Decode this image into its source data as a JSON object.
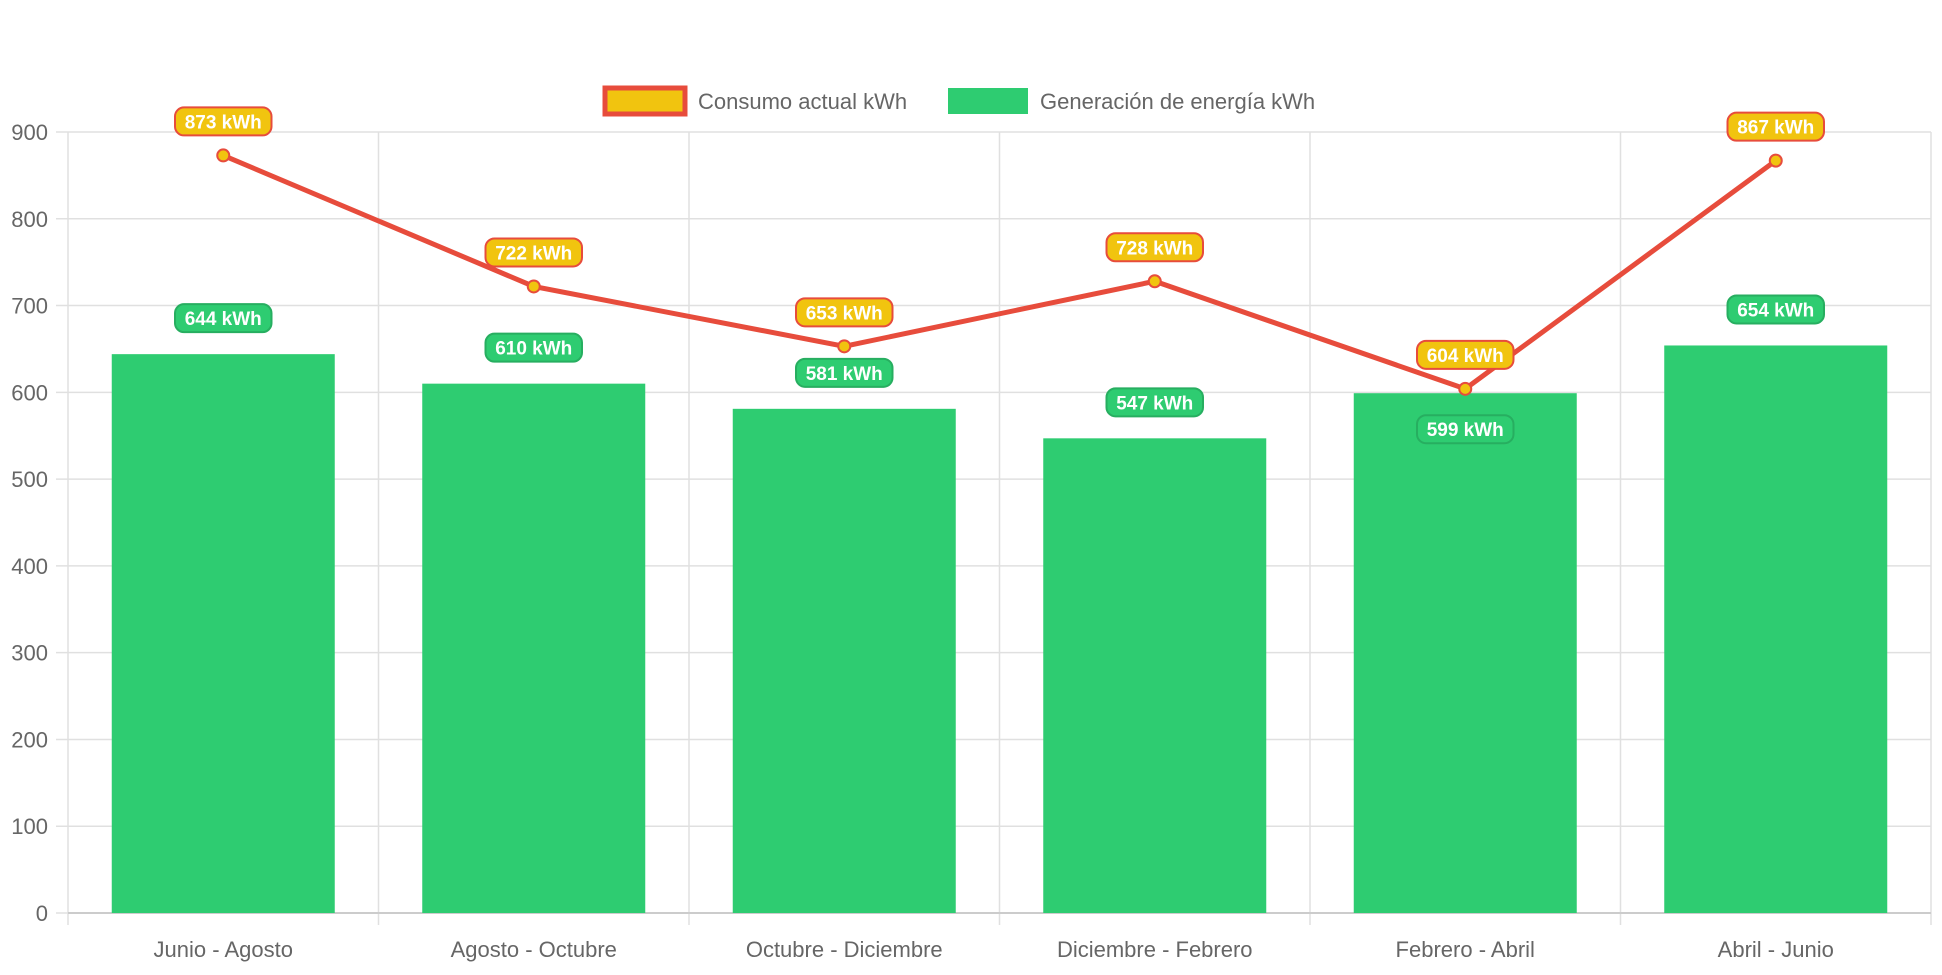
{
  "chart_data": {
    "type": "bar",
    "categories": [
      "Junio - Agosto",
      "Agosto - Octubre",
      "Octubre - Diciembre",
      "Diciembre - Febrero",
      "Febrero - Abril",
      "Abril - Junio"
    ],
    "series": [
      {
        "name": "Consumo actual kWh",
        "type": "line",
        "values": [
          873,
          722,
          653,
          728,
          604,
          867
        ],
        "labels": [
          "873 kWh",
          "722 kWh",
          "653 kWh",
          "728 kWh",
          "604 kWh",
          "867 kWh"
        ],
        "color": "#e74c3c",
        "fill": "#f1c40f"
      },
      {
        "name": "Generación de energía kWh",
        "type": "bar",
        "values": [
          644,
          610,
          581,
          547,
          599,
          654
        ],
        "labels": [
          "644 kWh",
          "610 kWh",
          "581 kWh",
          "547 kWh",
          "599 kWh",
          "654 kWh"
        ],
        "color": "#2ecc71"
      }
    ],
    "ylim": [
      0,
      900
    ],
    "yticks": [
      "0",
      "100",
      "200",
      "300",
      "400",
      "500",
      "600",
      "700",
      "800",
      "900"
    ],
    "grid": true,
    "legend": "top"
  }
}
